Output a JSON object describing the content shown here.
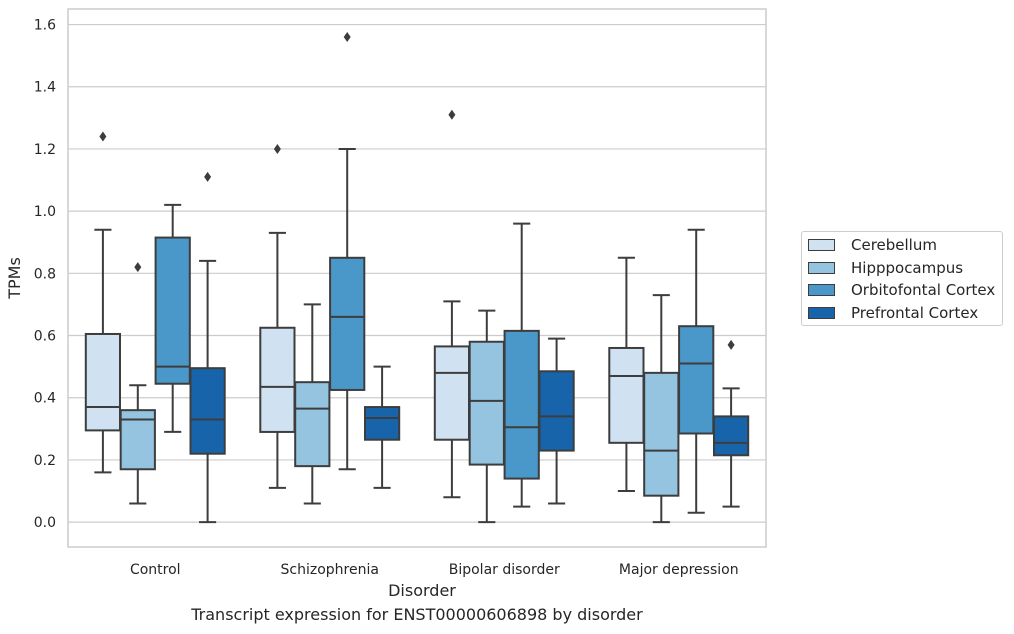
{
  "chart_data": {
    "type": "box",
    "title": "",
    "caption": "Transcript expression for ENST00000606898 by disorder",
    "xlabel": "Disorder",
    "ylabel": "TPMs",
    "ylim": [
      -0.08,
      1.65
    ],
    "yticks": [
      "0.0",
      "0.2",
      "0.4",
      "0.6",
      "0.8",
      "1.0",
      "1.2",
      "1.4",
      "1.6"
    ],
    "grid": "horizontal",
    "legend_position": "right",
    "categories": [
      "Control",
      "Schizophrenia",
      "Bipolar disorder",
      "Major depression"
    ],
    "series": [
      {
        "name": "Cerebellum",
        "color": "#d0e1f2",
        "boxes": [
          {
            "whislo": 0.16,
            "q1": 0.295,
            "med": 0.37,
            "q3": 0.605,
            "whishi": 0.94,
            "fliers": [
              1.24
            ]
          },
          {
            "whislo": 0.11,
            "q1": 0.29,
            "med": 0.435,
            "q3": 0.625,
            "whishi": 0.93,
            "fliers": [
              1.2
            ]
          },
          {
            "whislo": 0.08,
            "q1": 0.265,
            "med": 0.48,
            "q3": 0.565,
            "whishi": 0.71,
            "fliers": [
              1.31
            ]
          },
          {
            "whislo": 0.1,
            "q1": 0.255,
            "med": 0.47,
            "q3": 0.56,
            "whishi": 0.85,
            "fliers": []
          }
        ]
      },
      {
        "name": "Hipppocampus",
        "color": "#94c4df",
        "boxes": [
          {
            "whislo": 0.06,
            "q1": 0.17,
            "med": 0.33,
            "q3": 0.36,
            "whishi": 0.44,
            "fliers": [
              0.82
            ]
          },
          {
            "whislo": 0.06,
            "q1": 0.18,
            "med": 0.365,
            "q3": 0.45,
            "whishi": 0.7,
            "fliers": []
          },
          {
            "whislo": 0.0,
            "q1": 0.185,
            "med": 0.39,
            "q3": 0.58,
            "whishi": 0.68,
            "fliers": []
          },
          {
            "whislo": 0.0,
            "q1": 0.085,
            "med": 0.23,
            "q3": 0.48,
            "whishi": 0.73,
            "fliers": []
          }
        ]
      },
      {
        "name": "Orbitofontal Cortex",
        "color": "#4a98c9",
        "boxes": [
          {
            "whislo": 0.29,
            "q1": 0.445,
            "med": 0.5,
            "q3": 0.915,
            "whishi": 1.02,
            "fliers": []
          },
          {
            "whislo": 0.17,
            "q1": 0.425,
            "med": 0.66,
            "q3": 0.85,
            "whishi": 1.2,
            "fliers": [
              1.56
            ]
          },
          {
            "whislo": 0.05,
            "q1": 0.14,
            "med": 0.305,
            "q3": 0.615,
            "whishi": 0.96,
            "fliers": []
          },
          {
            "whislo": 0.03,
            "q1": 0.285,
            "med": 0.51,
            "q3": 0.63,
            "whishi": 0.94,
            "fliers": []
          }
        ]
      },
      {
        "name": "Prefrontal Cortex",
        "color": "#1764ab",
        "boxes": [
          {
            "whislo": 0.0,
            "q1": 0.22,
            "med": 0.33,
            "q3": 0.495,
            "whishi": 0.84,
            "fliers": [
              1.11
            ]
          },
          {
            "whislo": 0.11,
            "q1": 0.265,
            "med": 0.335,
            "q3": 0.37,
            "whishi": 0.5,
            "fliers": []
          },
          {
            "whislo": 0.06,
            "q1": 0.23,
            "med": 0.34,
            "q3": 0.485,
            "whishi": 0.59,
            "fliers": []
          },
          {
            "whislo": 0.05,
            "q1": 0.215,
            "med": 0.255,
            "q3": 0.34,
            "whishi": 0.43,
            "fliers": [
              0.57
            ]
          }
        ]
      }
    ]
  }
}
